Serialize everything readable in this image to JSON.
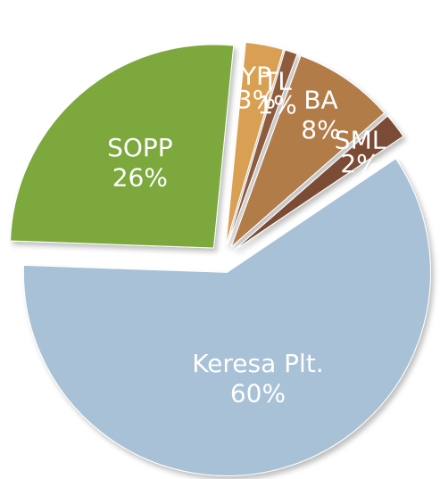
{
  "chart_data": {
    "type": "pie",
    "categories": [
      "Keresa Plt.",
      "SOPP",
      "YP",
      "TL",
      "BA",
      "SML"
    ],
    "values": [
      60,
      26,
      3,
      1,
      8,
      2
    ],
    "value_labels": [
      "60%",
      "26%",
      "3%",
      "1%",
      "8%",
      "2%"
    ],
    "colors": [
      "#a8c1d6",
      "#7ba83c",
      "#d9a052",
      "#8e5c3e",
      "#b27c48",
      "#7b4b34"
    ]
  }
}
